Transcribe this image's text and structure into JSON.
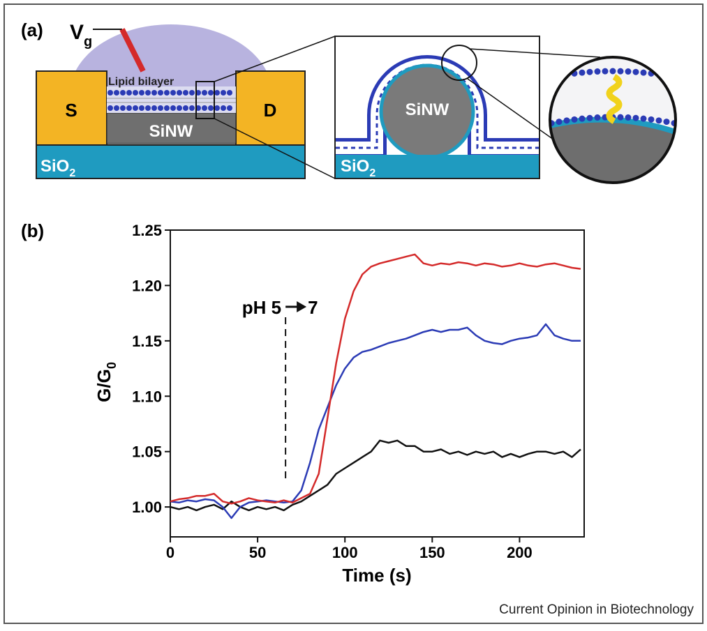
{
  "diagram": {
    "panel_label": "(a)",
    "gate": {
      "text": "V",
      "sub": "g"
    },
    "lipid": "Lipid bilayer",
    "source": "S",
    "drain": "D",
    "wire": "SiNW",
    "oxide": {
      "text": "SiO",
      "sub": "2"
    },
    "zoom_wire": "SiNW",
    "zoom_oxide": {
      "text": "SiO",
      "sub": "2"
    }
  },
  "chart_data": {
    "type": "line",
    "panel_label": "(b)",
    "x_label": "Time (s)",
    "y_label": {
      "text": "G/G",
      "sub": "0"
    },
    "x": [
      0,
      5,
      10,
      15,
      20,
      25,
      30,
      35,
      40,
      45,
      50,
      55,
      60,
      65,
      70,
      75,
      80,
      85,
      90,
      95,
      100,
      105,
      110,
      115,
      120,
      125,
      130,
      135,
      140,
      145,
      150,
      155,
      160,
      165,
      170,
      175,
      180,
      185,
      190,
      195,
      200,
      205,
      210,
      215,
      220,
      225,
      230,
      235
    ],
    "series": [
      {
        "color": "#111111",
        "values": [
          1.0,
          0.998,
          1.0,
          0.997,
          1.0,
          1.002,
          0.998,
          1.005,
          1.0,
          0.997,
          1.0,
          0.998,
          1.0,
          0.997,
          1.002,
          1.005,
          1.01,
          1.015,
          1.02,
          1.03,
          1.035,
          1.04,
          1.045,
          1.05,
          1.06,
          1.058,
          1.06,
          1.055,
          1.055,
          1.05,
          1.05,
          1.052,
          1.048,
          1.05,
          1.047,
          1.05,
          1.048,
          1.05,
          1.045,
          1.048,
          1.045,
          1.048,
          1.05,
          1.05,
          1.048,
          1.05,
          1.045,
          1.052
        ]
      },
      {
        "color": "#2b3bb5",
        "values": [
          1.005,
          1.004,
          1.006,
          1.005,
          1.007,
          1.006,
          1.0,
          0.99,
          1.0,
          1.004,
          1.005,
          1.006,
          1.005,
          1.004,
          1.005,
          1.015,
          1.04,
          1.07,
          1.09,
          1.11,
          1.125,
          1.135,
          1.14,
          1.142,
          1.145,
          1.148,
          1.15,
          1.152,
          1.155,
          1.158,
          1.16,
          1.158,
          1.16,
          1.16,
          1.162,
          1.155,
          1.15,
          1.148,
          1.147,
          1.15,
          1.152,
          1.153,
          1.155,
          1.165,
          1.155,
          1.152,
          1.15,
          1.15
        ]
      },
      {
        "color": "#d42a2a",
        "values": [
          1.005,
          1.007,
          1.008,
          1.01,
          1.01,
          1.012,
          1.005,
          1.003,
          1.005,
          1.008,
          1.006,
          1.005,
          1.004,
          1.006,
          1.004,
          1.008,
          1.012,
          1.03,
          1.08,
          1.13,
          1.17,
          1.195,
          1.21,
          1.217,
          1.22,
          1.222,
          1.224,
          1.226,
          1.228,
          1.22,
          1.218,
          1.22,
          1.219,
          1.221,
          1.22,
          1.218,
          1.22,
          1.219,
          1.217,
          1.218,
          1.22,
          1.218,
          1.217,
          1.219,
          1.22,
          1.218,
          1.216,
          1.215
        ]
      }
    ],
    "xlim": [
      0,
      237
    ],
    "ylim": [
      0.973,
      1.25
    ],
    "xticks": [
      0,
      50,
      100,
      150,
      200
    ],
    "yticks": [
      {
        "value": 1,
        "label": "1.00"
      },
      1.05,
      {
        "value": 1.1,
        "label": "1.10"
      },
      1.15,
      {
        "value": 1.2,
        "label": "1.20"
      },
      1.25
    ],
    "annotation": {
      "from_label": "pH 5",
      "to_label": "7",
      "x": 66
    },
    "credit": "Current Opinion in Biotechnology"
  }
}
